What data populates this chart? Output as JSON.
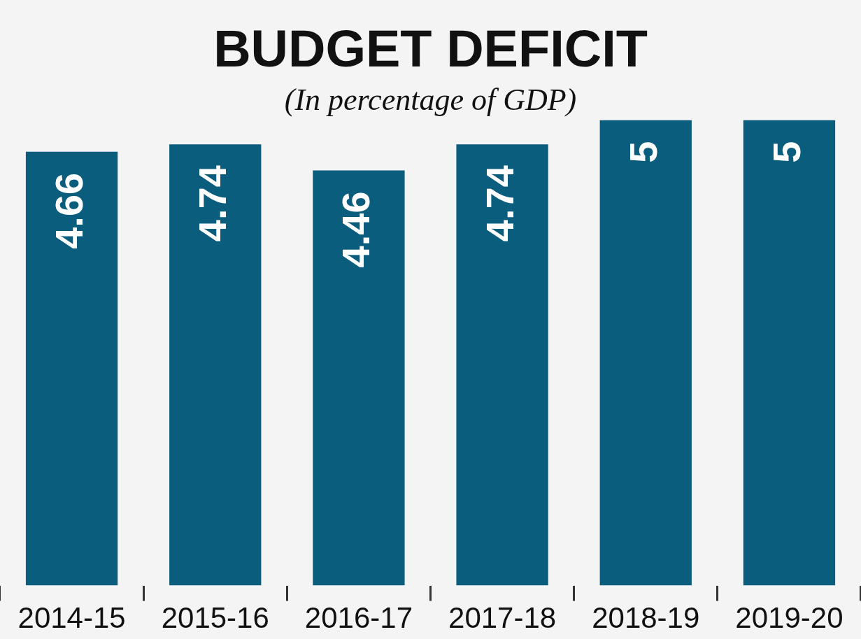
{
  "chart_data": {
    "type": "bar",
    "title": "BUDGET DEFICIT",
    "subtitle": "(In percentage of GDP)",
    "categories": [
      "2014-15",
      "2015-16",
      "2016-17",
      "2017-18",
      "2018-19",
      "2019-20"
    ],
    "values": [
      4.66,
      4.74,
      4.46,
      4.74,
      5,
      5
    ],
    "color": "#0b5d7e",
    "data_labels": true,
    "grid": false,
    "legend": false
  }
}
